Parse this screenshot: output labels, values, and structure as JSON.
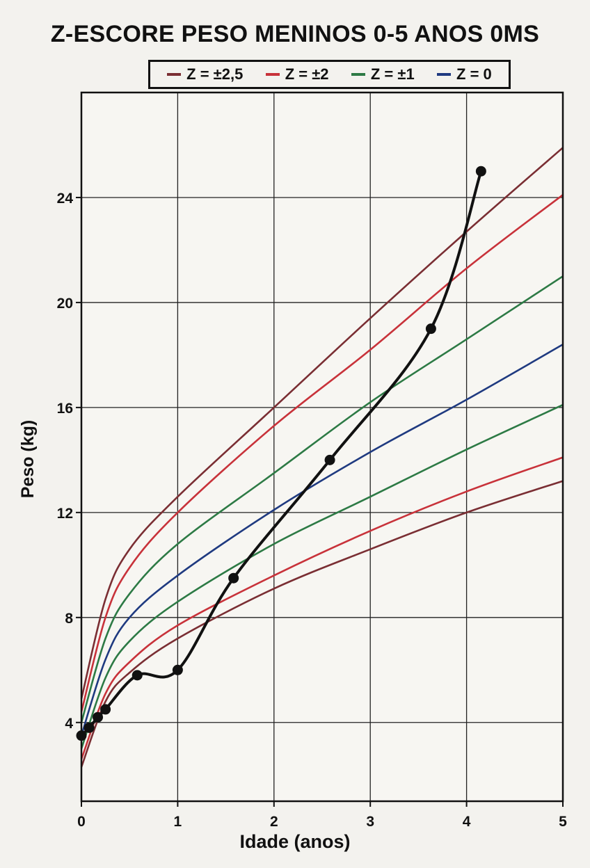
{
  "chart_data": {
    "type": "line",
    "title": "Z-ESCORE PESO MENINOS 0-5 ANOS 0MS",
    "xlabel": "Idade (anos)",
    "ylabel": "Peso (kg)",
    "xlim": [
      0,
      5
    ],
    "ylim": [
      1,
      28
    ],
    "xticks": [
      0,
      1,
      2,
      3,
      4,
      5
    ],
    "yticks": [
      4,
      8,
      12,
      16,
      20,
      24
    ],
    "grid": true,
    "legend_position": "top",
    "legend": [
      {
        "label": "Z = ±2,5",
        "color": "#7a2e33"
      },
      {
        "label": "Z = ±2",
        "color": "#c8323a"
      },
      {
        "label": "Z = ±1",
        "color": "#2d7a45"
      },
      {
        "label": "Z = 0",
        "color": "#1f3a80"
      }
    ],
    "series": [
      {
        "z": "+2.5",
        "color": "#7a2e33",
        "x": [
          0,
          0.25,
          0.5,
          1,
          2,
          3,
          4,
          5
        ],
        "y": [
          4.9,
          8.7,
          10.6,
          12.6,
          16.0,
          19.4,
          22.7,
          25.9
        ]
      },
      {
        "z": "+2",
        "color": "#c8323a",
        "x": [
          0,
          0.25,
          0.5,
          1,
          2,
          3,
          4,
          5
        ],
        "y": [
          4.4,
          8.0,
          9.9,
          12.0,
          15.3,
          18.2,
          21.3,
          24.1
        ]
      },
      {
        "z": "+1",
        "color": "#2d7a45",
        "x": [
          0,
          0.25,
          0.5,
          1,
          2,
          3,
          4,
          5
        ],
        "y": [
          4.0,
          7.2,
          8.9,
          10.8,
          13.5,
          16.2,
          18.6,
          21.0
        ]
      },
      {
        "z": "0",
        "color": "#1f3a80",
        "x": [
          0,
          0.25,
          0.5,
          1,
          2,
          3,
          4,
          5
        ],
        "y": [
          3.5,
          6.4,
          8.0,
          9.6,
          12.1,
          14.3,
          16.3,
          18.4
        ]
      },
      {
        "z": "-1",
        "color": "#2d7a45",
        "x": [
          0,
          0.25,
          0.5,
          1,
          2,
          3,
          4,
          5
        ],
        "y": [
          3.0,
          5.7,
          7.1,
          8.6,
          10.8,
          12.6,
          14.4,
          16.1
        ]
      },
      {
        "z": "-2",
        "color": "#c8323a",
        "x": [
          0,
          0.25,
          0.5,
          1,
          2,
          3,
          4,
          5
        ],
        "y": [
          2.6,
          5.1,
          6.3,
          7.7,
          9.6,
          11.3,
          12.8,
          14.1
        ]
      },
      {
        "z": "-2.5",
        "color": "#7a2e33",
        "x": [
          0,
          0.25,
          0.5,
          1,
          2,
          3,
          4,
          5
        ],
        "y": [
          2.3,
          4.8,
          5.9,
          7.2,
          9.1,
          10.6,
          12.0,
          13.2
        ]
      }
    ],
    "measurements": {
      "color": "#111111",
      "x": [
        0,
        0.08,
        0.17,
        0.25,
        0.58,
        1.0,
        1.58,
        2.58,
        3.63,
        4.15
      ],
      "y": [
        3.5,
        3.8,
        4.2,
        4.5,
        5.8,
        6.0,
        9.5,
        14.0,
        19.0,
        25.0
      ]
    }
  }
}
